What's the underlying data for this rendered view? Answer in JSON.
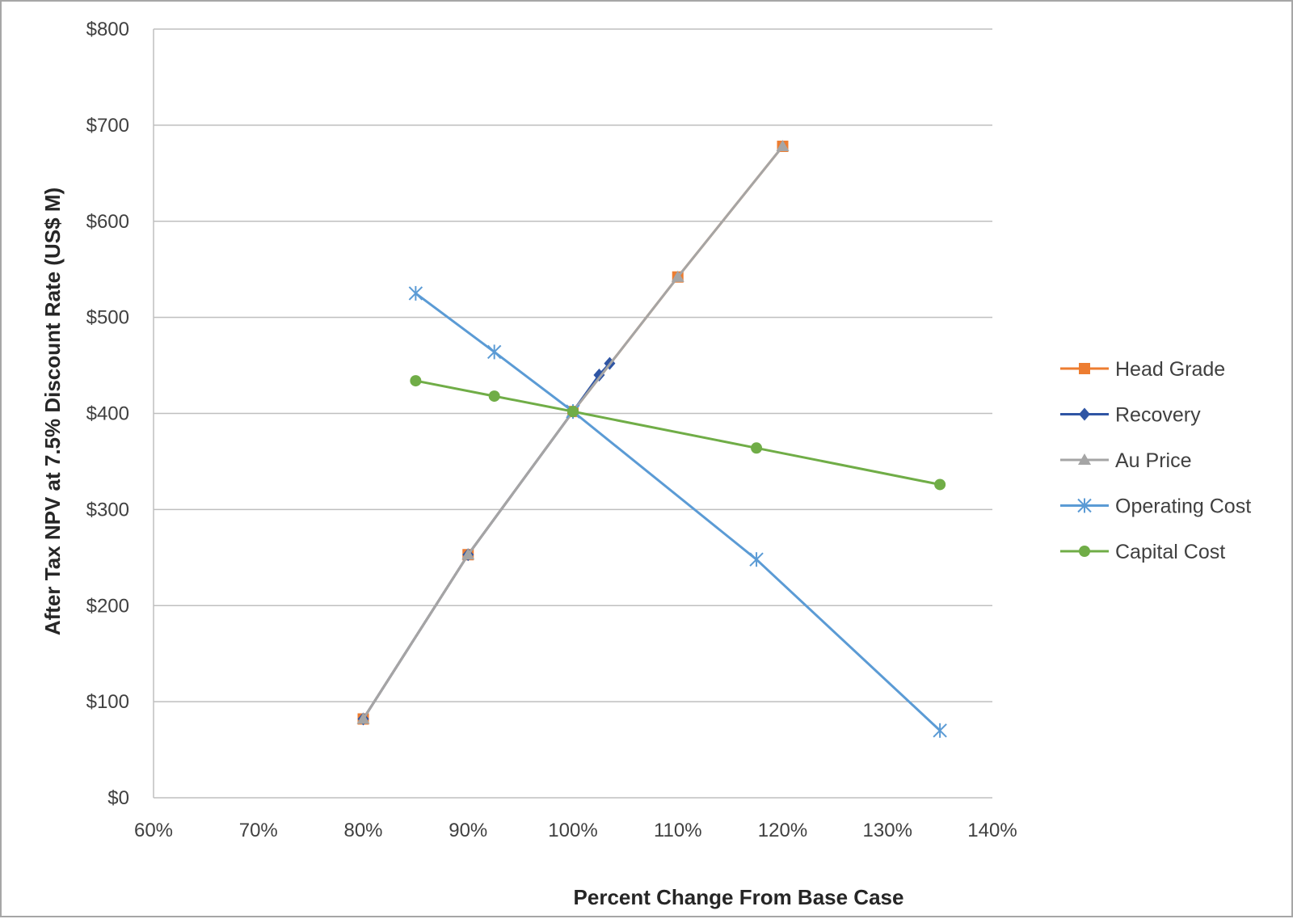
{
  "chart_data": {
    "type": "line",
    "title": "",
    "xlabel": "Percent Change  From Base Case",
    "ylabel": "After Tax NPV at 7.5% Discount Rate (US$ M)",
    "xlim": [
      60,
      140
    ],
    "ylim": [
      0,
      800
    ],
    "x_ticks": [
      60,
      70,
      80,
      90,
      100,
      110,
      120,
      130,
      140
    ],
    "x_tick_labels": [
      "60%",
      "70%",
      "80%",
      "90%",
      "100%",
      "110%",
      "120%",
      "130%",
      "140%"
    ],
    "y_ticks": [
      0,
      100,
      200,
      300,
      400,
      500,
      600,
      700,
      800
    ],
    "y_tick_labels": [
      "$0",
      "$100",
      "$200",
      "$300",
      "$400",
      "$500",
      "$600",
      "$700",
      "$800"
    ],
    "grid": true,
    "legend_position": "right",
    "series": [
      {
        "name": "Head Grade",
        "color": "#ed7d31",
        "marker": "square",
        "points": [
          [
            80,
            82
          ],
          [
            90,
            253
          ],
          [
            100,
            402
          ],
          [
            110,
            542
          ],
          [
            120,
            678
          ]
        ]
      },
      {
        "name": "Recovery",
        "color": "#2f55a4",
        "marker": "diamond",
        "points": [
          [
            80,
            82
          ],
          [
            90,
            253
          ],
          [
            100,
            402
          ],
          [
            102.5,
            440
          ],
          [
            103.5,
            452
          ]
        ]
      },
      {
        "name": "Au Price",
        "color": "#a5a5a5",
        "marker": "triangle",
        "points": [
          [
            80,
            82
          ],
          [
            90,
            253
          ],
          [
            100,
            402
          ],
          [
            110,
            542
          ],
          [
            120,
            678
          ]
        ]
      },
      {
        "name": "Operating Cost",
        "color": "#5b9bd5",
        "marker": "star",
        "points": [
          [
            85,
            525
          ],
          [
            92.5,
            464
          ],
          [
            100,
            402
          ],
          [
            117.5,
            248
          ],
          [
            135,
            70
          ]
        ]
      },
      {
        "name": "Capital Cost",
        "color": "#70ad47",
        "marker": "circle",
        "points": [
          [
            85,
            434
          ],
          [
            92.5,
            418
          ],
          [
            100,
            402
          ],
          [
            117.5,
            364
          ],
          [
            135,
            326
          ]
        ]
      }
    ]
  }
}
